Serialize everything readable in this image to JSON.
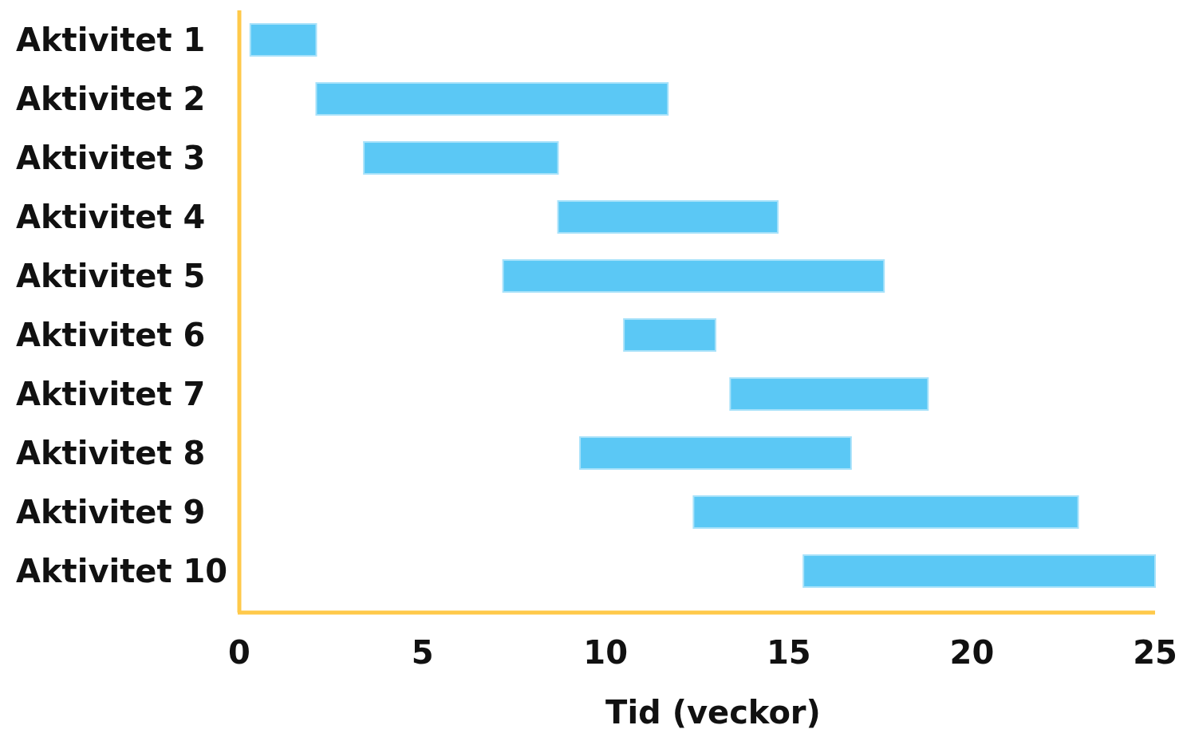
{
  "chart_data": {
    "type": "bar",
    "orientation": "horizontal",
    "xlabel": "Tid (veckor)",
    "categories": [
      "Aktivitet 1",
      "Aktivitet 2",
      "Aktivitet 3",
      "Aktivitet 4",
      "Aktivitet 5",
      "Aktivitet 6",
      "Aktivitet 7",
      "Aktivitet 8",
      "Aktivitet 9",
      "Aktivitet 10"
    ],
    "base": [
      0.3,
      2.1,
      3.4,
      8.7,
      7.2,
      10.5,
      13.4,
      9.3,
      12.4,
      15.4
    ],
    "values": [
      1.8,
      9.6,
      5.3,
      6.0,
      10.4,
      2.5,
      5.4,
      7.4,
      10.5,
      9.6
    ],
    "color": "#5bc8f5",
    "xlim": [
      0,
      25
    ],
    "xticks": [
      0,
      5,
      10,
      15,
      20,
      25
    ]
  }
}
